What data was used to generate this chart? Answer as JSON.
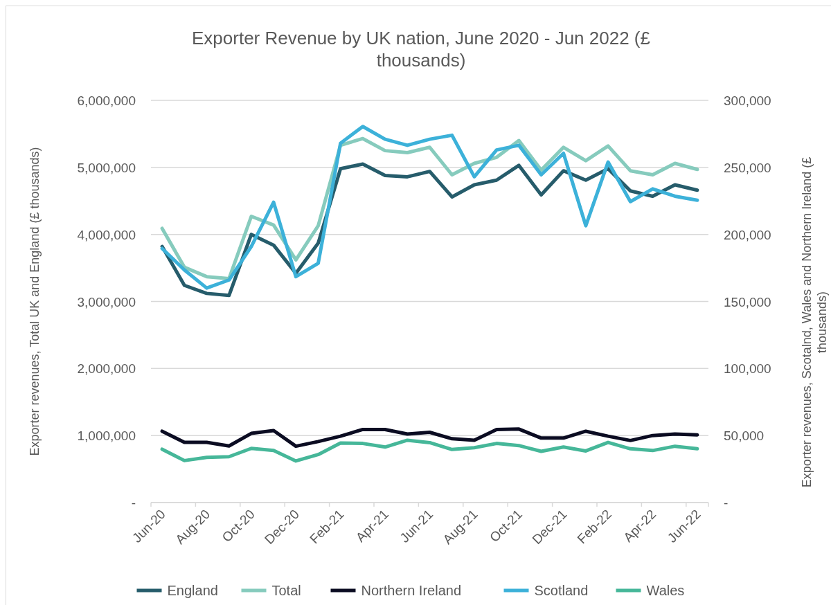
{
  "chart_data": {
    "type": "line",
    "title": "Exporter Revenue by UK nation, June 2020 - Jun 2022 (£ thousands)",
    "ylabel": "Exporter revenues, Total UK and England (£ thousands)",
    "y2label": "Exporter revenues, Scotalnd, Wales and Northern Ireland  (£ thousands)",
    "categories": [
      "Jun-20",
      null,
      "Aug-20",
      null,
      "Oct-20",
      null,
      "Dec-20",
      null,
      "Feb-21",
      null,
      "Apr-21",
      null,
      "Jun-21",
      null,
      "Aug-21",
      null,
      "Oct-21",
      null,
      "Dec-21",
      null,
      "Feb-22",
      null,
      "Apr-22",
      null,
      "Jun-22"
    ],
    "series": [
      {
        "name": "England",
        "color": "#265c6b",
        "values": [
          3820000,
          3240000,
          3120000,
          3090000,
          4000000,
          3840000,
          3420000,
          3870000,
          4980000,
          5050000,
          4880000,
          4860000,
          4940000,
          4560000,
          4740000,
          4810000,
          5030000,
          4590000,
          4950000,
          4810000,
          4980000,
          4650000,
          4570000,
          4740000,
          4660000
        ]
      },
      {
        "name": "Total",
        "color": "#86cbbd",
        "values": [
          4090000,
          3510000,
          3370000,
          3340000,
          4270000,
          4140000,
          3620000,
          4130000,
          5330000,
          5430000,
          5250000,
          5220000,
          5300000,
          4890000,
          5060000,
          5150000,
          5400000,
          4960000,
          5300000,
          5100000,
          5320000,
          4950000,
          4890000,
          5060000,
          4970000
        ]
      },
      {
        "name": "Northern Ireland",
        "color": "#0b0c22",
        "axis": "y2",
        "values": [
          53200,
          44900,
          44900,
          42200,
          51600,
          53700,
          42000,
          45500,
          49500,
          54500,
          54500,
          51100,
          52400,
          47600,
          46500,
          54500,
          54800,
          48100,
          48100,
          53200,
          49500,
          46300,
          50000,
          51100,
          50500
        ]
      },
      {
        "name": "Scotland",
        "color": "#3cb1d9",
        "axis": "y2",
        "values": [
          189500,
          173500,
          160000,
          166000,
          191000,
          224000,
          168500,
          178500,
          268000,
          280500,
          271000,
          266500,
          271000,
          274000,
          243000,
          263000,
          266500,
          244500,
          260500,
          206500,
          254000,
          224500,
          234000,
          228500,
          225500
        ]
      },
      {
        "name": "Wales",
        "color": "#46b799",
        "axis": "y2",
        "values": [
          39800,
          31300,
          33700,
          34200,
          40400,
          38800,
          31000,
          35800,
          44400,
          44100,
          41400,
          46500,
          44700,
          39600,
          40900,
          44100,
          42500,
          38200,
          41400,
          38500,
          44900,
          40100,
          38800,
          42000,
          40100
        ]
      }
    ],
    "ylim": [
      0,
      6000000
    ],
    "yticks": [
      {
        "value": 0,
        "label": "-"
      },
      {
        "value": 1000000,
        "label": "1,000,000"
      },
      {
        "value": 2000000,
        "label": "2,000,000"
      },
      {
        "value": 3000000,
        "label": "3,000,000"
      },
      {
        "value": 4000000,
        "label": "4,000,000"
      },
      {
        "value": 5000000,
        "label": "5,000,000"
      },
      {
        "value": 6000000,
        "label": "6,000,000"
      }
    ],
    "y2lim": [
      0,
      300000
    ],
    "y2ticks": [
      {
        "value": 0,
        "label": "-"
      },
      {
        "value": 50000,
        "label": "50,000"
      },
      {
        "value": 100000,
        "label": "100,000"
      },
      {
        "value": 150000,
        "label": "150,000"
      },
      {
        "value": 200000,
        "label": "200,000"
      },
      {
        "value": 250000,
        "label": "250,000"
      },
      {
        "value": 300000,
        "label": "300,000"
      }
    ],
    "grid": "y",
    "legend": "bottom",
    "marker": "none",
    "line_style": "solid"
  }
}
